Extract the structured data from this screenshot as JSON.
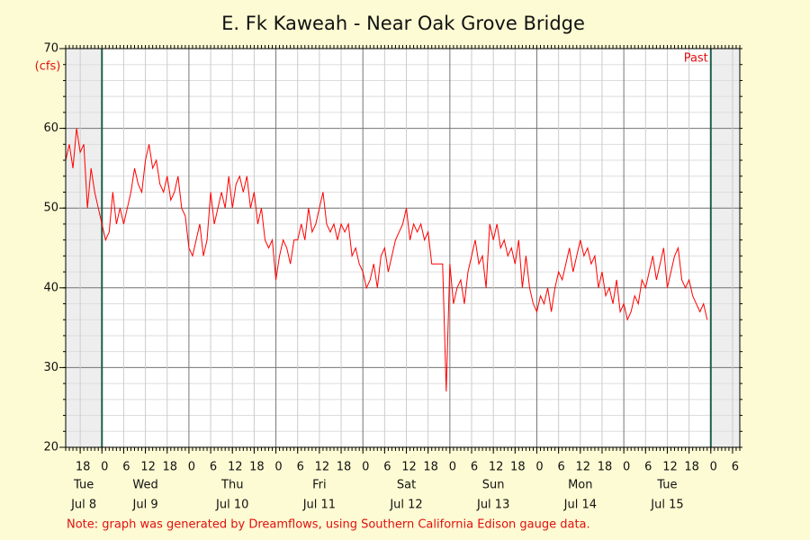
{
  "chart_data": {
    "type": "line",
    "title": "E. Fk Kaweah - Near Oak Grove Bridge",
    "y_unit": "(cfs)",
    "annotation": "Past",
    "note": "Note: graph was generated by Dreamflows, using Southern California Edison gauge data.",
    "highlight_range": [
      "Jul 9 00:00",
      "Jul 16 00:00"
    ],
    "x": [
      "Jul 8 14:00",
      "Jul 8 15:00",
      "Jul 8 16:00",
      "Jul 8 17:00",
      "Jul 8 18:00",
      "Jul 8 19:00",
      "Jul 8 20:00",
      "Jul 8 21:00",
      "Jul 8 22:00",
      "Jul 8 23:00",
      "Jul 9 00:00",
      "Jul 9 01:00",
      "Jul 9 02:00",
      "Jul 9 03:00",
      "Jul 9 04:00",
      "Jul 9 05:00",
      "Jul 9 06:00",
      "Jul 9 07:00",
      "Jul 9 08:00",
      "Jul 9 09:00",
      "Jul 9 10:00",
      "Jul 9 11:00",
      "Jul 9 12:00",
      "Jul 9 13:00",
      "Jul 9 14:00",
      "Jul 9 15:00",
      "Jul 9 16:00",
      "Jul 9 17:00",
      "Jul 9 18:00",
      "Jul 9 19:00",
      "Jul 9 20:00",
      "Jul 9 21:00",
      "Jul 9 22:00",
      "Jul 9 23:00",
      "Jul 10 00:00",
      "Jul 10 01:00",
      "Jul 10 02:00",
      "Jul 10 03:00",
      "Jul 10 04:00",
      "Jul 10 05:00",
      "Jul 10 06:00",
      "Jul 10 07:00",
      "Jul 10 08:00",
      "Jul 10 09:00",
      "Jul 10 10:00",
      "Jul 10 11:00",
      "Jul 10 12:00",
      "Jul 10 13:00",
      "Jul 10 14:00",
      "Jul 10 15:00",
      "Jul 10 16:00",
      "Jul 10 17:00",
      "Jul 10 18:00",
      "Jul 10 19:00",
      "Jul 10 20:00",
      "Jul 10 21:00",
      "Jul 10 22:00",
      "Jul 10 23:00",
      "Jul 11 00:00",
      "Jul 11 01:00",
      "Jul 11 02:00",
      "Jul 11 03:00",
      "Jul 11 04:00",
      "Jul 11 05:00",
      "Jul 11 06:00",
      "Jul 11 07:00",
      "Jul 11 08:00",
      "Jul 11 09:00",
      "Jul 11 10:00",
      "Jul 11 11:00",
      "Jul 11 12:00",
      "Jul 11 13:00",
      "Jul 11 14:00",
      "Jul 11 15:00",
      "Jul 11 16:00",
      "Jul 11 17:00",
      "Jul 11 18:00",
      "Jul 11 19:00",
      "Jul 11 20:00",
      "Jul 11 21:00",
      "Jul 11 22:00",
      "Jul 11 23:00",
      "Jul 12 00:00",
      "Jul 12 01:00",
      "Jul 12 02:00",
      "Jul 12 03:00",
      "Jul 12 04:00",
      "Jul 12 05:00",
      "Jul 12 06:00",
      "Jul 12 07:00",
      "Jul 12 08:00",
      "Jul 12 09:00",
      "Jul 12 10:00",
      "Jul 12 11:00",
      "Jul 12 12:00",
      "Jul 12 13:00",
      "Jul 12 14:00",
      "Jul 12 15:00",
      "Jul 12 16:00",
      "Jul 12 17:00",
      "Jul 12 18:00",
      "Jul 12 19:00",
      "Jul 12 20:00",
      "Jul 12 21:00",
      "Jul 12 22:00",
      "Jul 12 23:00",
      "Jul 13 00:00",
      "Jul 13 01:00",
      "Jul 13 02:00",
      "Jul 13 03:00",
      "Jul 13 04:00",
      "Jul 13 05:00",
      "Jul 13 06:00",
      "Jul 13 07:00",
      "Jul 13 08:00",
      "Jul 13 09:00",
      "Jul 13 10:00",
      "Jul 13 11:00",
      "Jul 13 12:00",
      "Jul 13 13:00",
      "Jul 13 14:00",
      "Jul 13 15:00",
      "Jul 13 16:00",
      "Jul 13 17:00",
      "Jul 13 18:00",
      "Jul 13 19:00",
      "Jul 13 20:00",
      "Jul 13 21:00",
      "Jul 13 22:00",
      "Jul 13 23:00",
      "Jul 14 00:00",
      "Jul 14 01:00",
      "Jul 14 02:00",
      "Jul 14 03:00",
      "Jul 14 04:00",
      "Jul 14 05:00",
      "Jul 14 06:00",
      "Jul 14 07:00",
      "Jul 14 08:00",
      "Jul 14 09:00",
      "Jul 14 10:00",
      "Jul 14 11:00",
      "Jul 14 12:00",
      "Jul 14 13:00",
      "Jul 14 14:00",
      "Jul 14 15:00",
      "Jul 14 16:00",
      "Jul 14 17:00",
      "Jul 14 18:00",
      "Jul 14 19:00",
      "Jul 14 20:00",
      "Jul 14 21:00",
      "Jul 14 22:00",
      "Jul 14 23:00",
      "Jul 15 00:00",
      "Jul 15 01:00",
      "Jul 15 02:00",
      "Jul 15 03:00",
      "Jul 15 04:00",
      "Jul 15 05:00",
      "Jul 15 06:00",
      "Jul 15 07:00",
      "Jul 15 08:00",
      "Jul 15 09:00",
      "Jul 15 10:00",
      "Jul 15 11:00",
      "Jul 15 12:00",
      "Jul 15 13:00",
      "Jul 15 14:00",
      "Jul 15 15:00",
      "Jul 15 16:00",
      "Jul 15 17:00",
      "Jul 15 18:00",
      "Jul 15 19:00",
      "Jul 15 20:00",
      "Jul 15 21:00",
      "Jul 15 22:00",
      "Jul 15 23:00"
    ],
    "series": [
      {
        "color": "#ff0000",
        "values": [
          56,
          58,
          55,
          60,
          57,
          58,
          50,
          55,
          52,
          50,
          48,
          46,
          47,
          52,
          48,
          50,
          48,
          50,
          52,
          55,
          53,
          52,
          56,
          58,
          55,
          56,
          53,
          52,
          54,
          51,
          52,
          54,
          50,
          49,
          45,
          44,
          46,
          48,
          44,
          46,
          52,
          48,
          50,
          52,
          50,
          54,
          50,
          53,
          54,
          52,
          54,
          50,
          52,
          48,
          50,
          46,
          45,
          46,
          41,
          44,
          46,
          45,
          43,
          46,
          46,
          48,
          46,
          50,
          47,
          48,
          50,
          52,
          48,
          47,
          48,
          46,
          48,
          47,
          48,
          44,
          45,
          43,
          42,
          40,
          41,
          43,
          40,
          44,
          45,
          42,
          44,
          46,
          47,
          48,
          50,
          46,
          48,
          47,
          48,
          46,
          47,
          43,
          43,
          43,
          43,
          27,
          43,
          38,
          40,
          41,
          38,
          42,
          44,
          46,
          43,
          44,
          40,
          48,
          46,
          48,
          45,
          46,
          44,
          45,
          43,
          46,
          40,
          44,
          40,
          38,
          37,
          39,
          38,
          40,
          37,
          40,
          42,
          41,
          43,
          45,
          42,
          44,
          46,
          44,
          45,
          43,
          44,
          40,
          42,
          39,
          40,
          38,
          41,
          37,
          38,
          36,
          37,
          39,
          38,
          41,
          40,
          42,
          44,
          41,
          43,
          45,
          40,
          42,
          44,
          45,
          41,
          40,
          41,
          39,
          38,
          37,
          38,
          36
        ]
      }
    ],
    "xlim": [
      "Jul 8 14:00",
      "Jul 16 08:00"
    ],
    "xticks": [
      {
        "value": "Jul 8 18:00",
        "label": "18"
      },
      {
        "value": "Jul 9 00:00",
        "label": "0"
      },
      {
        "value": "Jul 9 06:00",
        "label": "6"
      },
      {
        "value": "Jul 9 12:00",
        "label": "12"
      },
      {
        "value": "Jul 9 18:00",
        "label": "18"
      },
      {
        "value": "Jul 10 00:00",
        "label": "0"
      },
      {
        "value": "Jul 10 06:00",
        "label": "6"
      },
      {
        "value": "Jul 10 12:00",
        "label": "12"
      },
      {
        "value": "Jul 10 18:00",
        "label": "18"
      },
      {
        "value": "Jul 11 00:00",
        "label": "0"
      },
      {
        "value": "Jul 11 06:00",
        "label": "6"
      },
      {
        "value": "Jul 11 12:00",
        "label": "12"
      },
      {
        "value": "Jul 11 18:00",
        "label": "18"
      },
      {
        "value": "Jul 12 00:00",
        "label": "0"
      },
      {
        "value": "Jul 12 06:00",
        "label": "6"
      },
      {
        "value": "Jul 12 12:00",
        "label": "12"
      },
      {
        "value": "Jul 12 18:00",
        "label": "18"
      },
      {
        "value": "Jul 13 00:00",
        "label": "0"
      },
      {
        "value": "Jul 13 06:00",
        "label": "6"
      },
      {
        "value": "Jul 13 12:00",
        "label": "12"
      },
      {
        "value": "Jul 13 18:00",
        "label": "18"
      },
      {
        "value": "Jul 14 00:00",
        "label": "0"
      },
      {
        "value": "Jul 14 06:00",
        "label": "6"
      },
      {
        "value": "Jul 14 12:00",
        "label": "12"
      },
      {
        "value": "Jul 14 18:00",
        "label": "18"
      },
      {
        "value": "Jul 15 00:00",
        "label": "0"
      },
      {
        "value": "Jul 15 06:00",
        "label": "6"
      },
      {
        "value": "Jul 15 12:00",
        "label": "12"
      },
      {
        "value": "Jul 15 18:00",
        "label": "18"
      },
      {
        "value": "Jul 16 00:00",
        "label": "0"
      },
      {
        "value": "Jul 16 06:00",
        "label": "6"
      }
    ],
    "days": [
      {
        "weekday": "Tue",
        "date": "Jul 8"
      },
      {
        "weekday": "Wed",
        "date": "Jul 9"
      },
      {
        "weekday": "Thu",
        "date": "Jul 10"
      },
      {
        "weekday": "Fri",
        "date": "Jul 11"
      },
      {
        "weekday": "Sat",
        "date": "Jul 12"
      },
      {
        "weekday": "Sun",
        "date": "Jul 13"
      },
      {
        "weekday": "Mon",
        "date": "Jul 14"
      },
      {
        "weekday": "Tue",
        "date": "Jul 15"
      }
    ],
    "ylim": [
      20,
      70
    ],
    "yticks": [
      20,
      30,
      40,
      50,
      60,
      70
    ],
    "grid": true
  }
}
